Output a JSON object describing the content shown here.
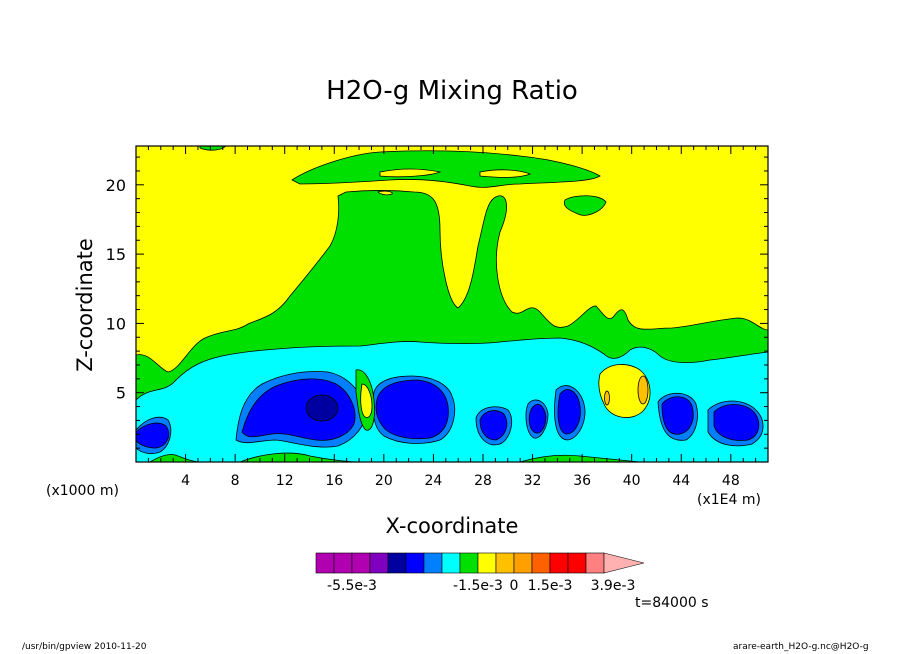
{
  "chart_data": {
    "type": "heatmap",
    "title": "H2O-g Mixing Ratio",
    "xlabel": "X-coordinate",
    "ylabel": "Z-coordinate",
    "x_unit_left": "(x1000 m)",
    "x_unit_right": "(x1E4 m)",
    "x_ticks": [
      "4",
      "8",
      "12",
      "16",
      "20",
      "24",
      "28",
      "32",
      "36",
      "40",
      "44",
      "48"
    ],
    "x_tick_values": [
      4,
      8,
      12,
      16,
      20,
      24,
      28,
      32,
      36,
      40,
      44,
      48
    ],
    "y_ticks": [
      "5",
      "10",
      "15",
      "20"
    ],
    "y_tick_values": [
      5,
      10,
      15,
      20
    ],
    "xlim": [
      0,
      51
    ],
    "ylim": [
      0,
      22.8
    ],
    "colorbar": {
      "colors": [
        "#b000b0",
        "#b000b0",
        "#b000b0",
        "#8000c0",
        "#0000a0",
        "#0000ff",
        "#0080ff",
        "#00ffff",
        "#00e000",
        "#ffff00",
        "#ffc000",
        "#ffa000",
        "#ff6000",
        "#ff0000",
        "#ff0000",
        "#ff8080",
        "#ffb0b0"
      ],
      "labels": [
        "-5.5e-3",
        "-1.5e-3",
        "0",
        "1.5e-3",
        "3.9e-3"
      ],
      "label_positions": [
        2,
        9,
        11,
        13,
        16.5
      ]
    },
    "regions": [
      {
        "level": "yellow",
        "color": "#ffff00"
      },
      {
        "level": "green",
        "color": "#00e000"
      },
      {
        "level": "cyan",
        "color": "#00ffff"
      },
      {
        "level": "mid-blue",
        "color": "#0080ff"
      },
      {
        "level": "blue",
        "color": "#0000ff"
      },
      {
        "level": "dark-blue",
        "color": "#0000a0"
      },
      {
        "level": "orange",
        "color": "#ffc000"
      }
    ],
    "time": "t=84000 s"
  },
  "footer": {
    "left": "/usr/bin/gpview   2010-11-20",
    "right": "arare-earth_H2O-g.nc@H2O-g"
  }
}
